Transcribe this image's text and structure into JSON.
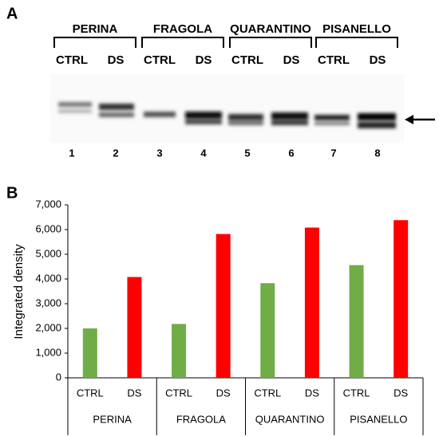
{
  "panel_a": {
    "label": "A",
    "groups": [
      "PERINA",
      "FRAGOLA",
      "QUARANTINO",
      "PISANELLO"
    ],
    "lane_conditions": [
      "CTRL",
      "DS",
      "CTRL",
      "DS",
      "CTRL",
      "DS",
      "CTRL",
      "DS"
    ],
    "lane_numbers": [
      "1",
      "2",
      "3",
      "4",
      "5",
      "6",
      "7",
      "8"
    ]
  },
  "chart_data": {
    "type": "bar",
    "label": "B",
    "ylabel": "Integrated density",
    "categories": [
      "CTRL",
      "DS",
      "CTRL",
      "DS",
      "CTRL",
      "DS",
      "CTRL",
      "DS"
    ],
    "groups": [
      "PERINA",
      "FRAGOLA",
      "QUARANTINO",
      "PISANELLO"
    ],
    "values": [
      2000,
      4080,
      2180,
      5820,
      3830,
      6080,
      4560,
      6380
    ],
    "colors": [
      "#70ad47",
      "#ff0000",
      "#70ad47",
      "#ff0000",
      "#70ad47",
      "#ff0000",
      "#70ad47",
      "#ff0000"
    ],
    "ylim": [
      0,
      7000
    ],
    "yticks": [
      0,
      {
        "value": 1000,
        "label": "1,000"
      },
      {
        "value": 2000,
        "label": "2,000"
      },
      {
        "value": 3000,
        "label": "3,000"
      },
      {
        "value": 4000,
        "label": "4,000"
      },
      {
        "value": 5000,
        "label": "5,000"
      },
      {
        "value": 6000,
        "label": "6,000"
      },
      {
        "value": 7000,
        "label": "7,000"
      }
    ]
  }
}
